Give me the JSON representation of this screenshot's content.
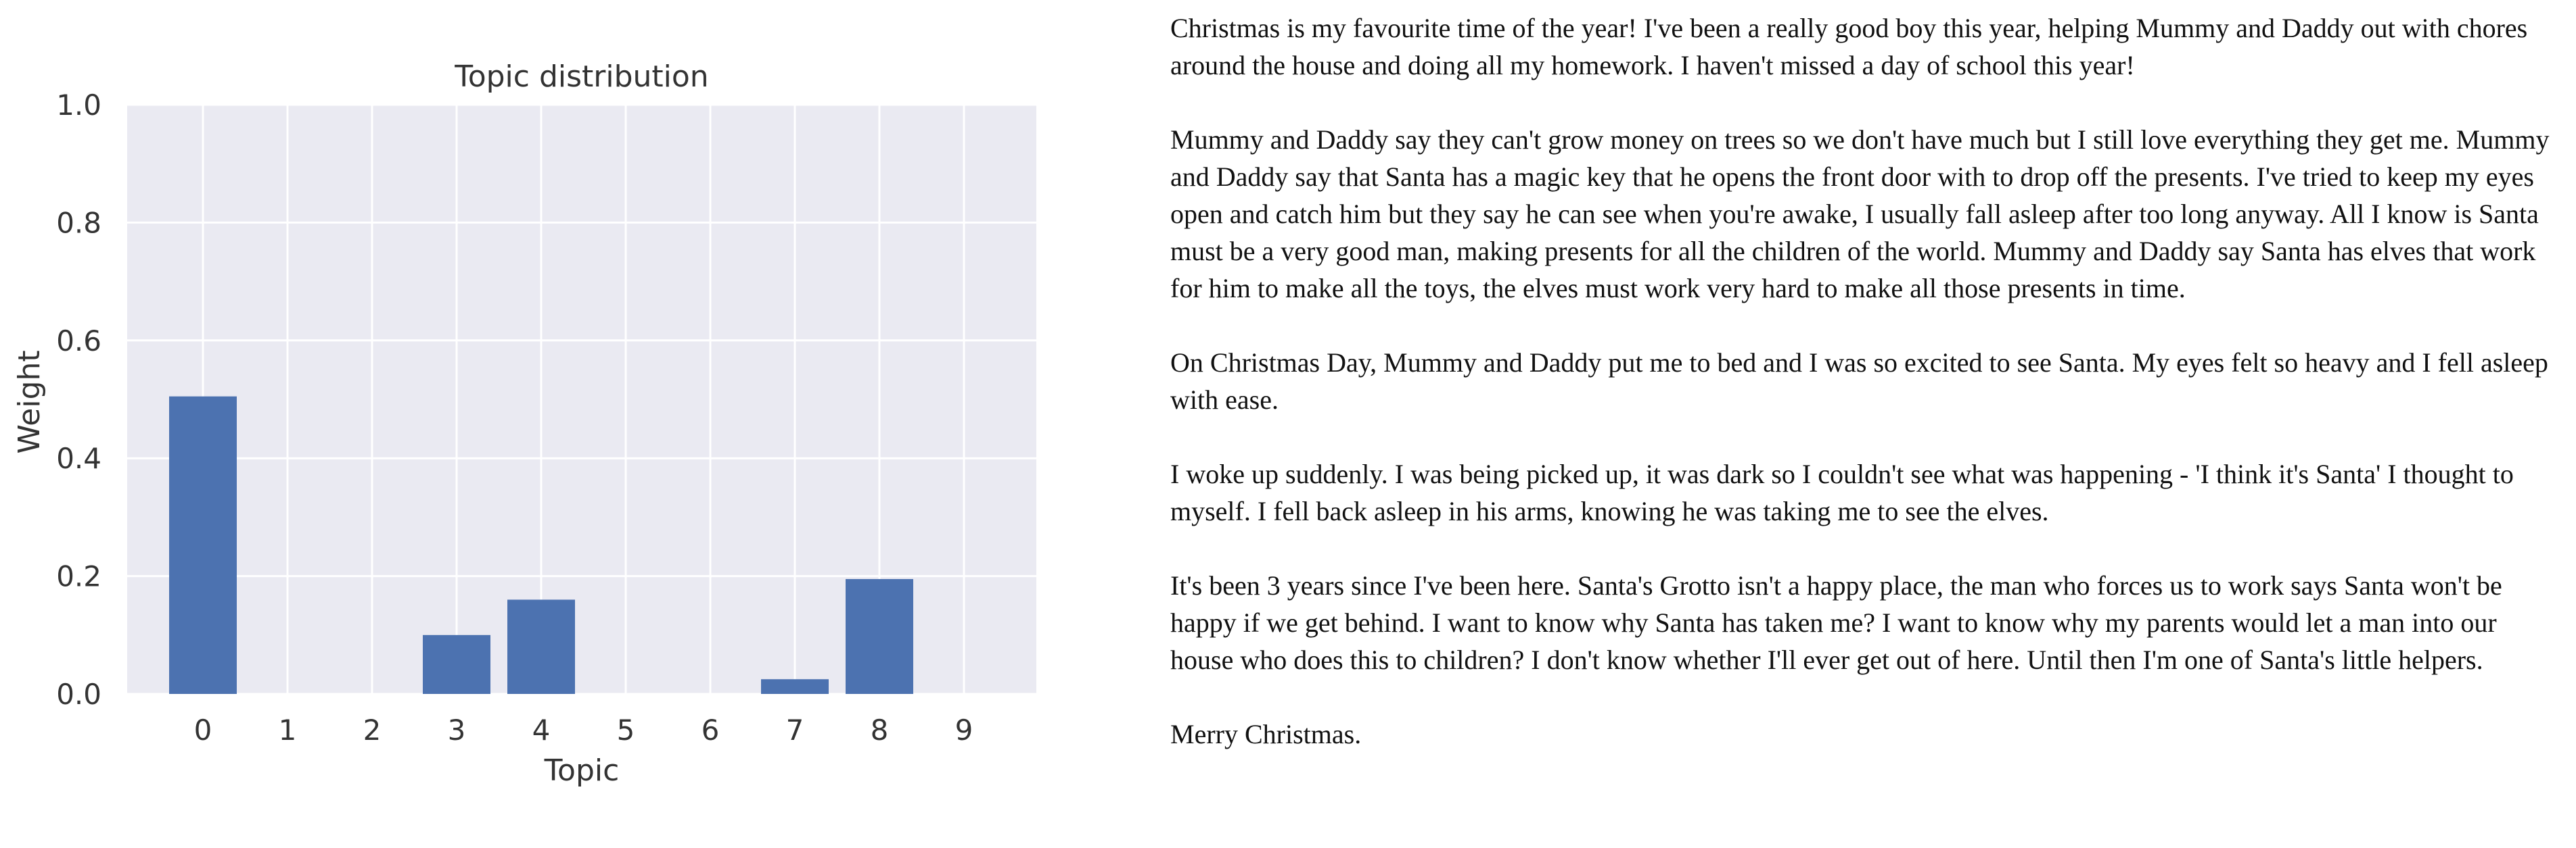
{
  "chart_data": {
    "type": "bar",
    "title": "Topic distribution",
    "xlabel": "Topic",
    "ylabel": "Weight",
    "categories": [
      "0",
      "1",
      "2",
      "3",
      "4",
      "5",
      "6",
      "7",
      "8",
      "9"
    ],
    "values": [
      0.505,
      0.0,
      0.0,
      0.1,
      0.16,
      0.0,
      0.0,
      0.025,
      0.195,
      0.0
    ],
    "ylim": [
      0,
      1.0
    ],
    "yticks": [
      "0.0",
      "0.2",
      "0.4",
      "0.6",
      "0.8",
      "1.0"
    ],
    "grid": true,
    "colors": {
      "bar": "#4c72b0",
      "plot_bg": "#eaeaf2",
      "grid": "#ffffff"
    }
  },
  "story": {
    "paragraphs": [
      "Christmas is my favourite time of the year! I've been a really good boy this year, helping Mummy and Daddy out with chores around the house and doing all my homework. I haven't missed a day of school this year!",
      "Mummy and Daddy say they can't grow money on trees so we don't have much but I still love everything they get me. Mummy and Daddy say that Santa has a magic key that he opens the front door with to drop off the presents. I've tried to keep my eyes open and catch him but they say he can see when you're awake, I usually fall asleep after too long anyway. All I know is Santa must be a very good man, making presents for all the children of the world. Mummy and Daddy say Santa has elves that work for him to make all the toys, the elves must work very hard to make all those presents in time.",
      "On Christmas Day, Mummy and Daddy put me to bed and I was so excited to see Santa. My eyes felt so heavy and I fell asleep with ease.",
      "I woke up suddenly. I was being picked up, it was dark so I couldn't see what was happening - 'I think it's Santa' I thought to myself. I fell back asleep in his arms, knowing he was taking me to see the elves.",
      "It's been 3 years since I've been here. Santa's Grotto isn't a happy place, the man who forces us to work says Santa won't be happy if we get behind. I want to know why Santa has taken me? I want to know why my parents would let a man into our house who does this to children? I don't know whether I'll ever get out of here. Until then I'm one of Santa's little helpers.",
      "Merry Christmas."
    ]
  }
}
